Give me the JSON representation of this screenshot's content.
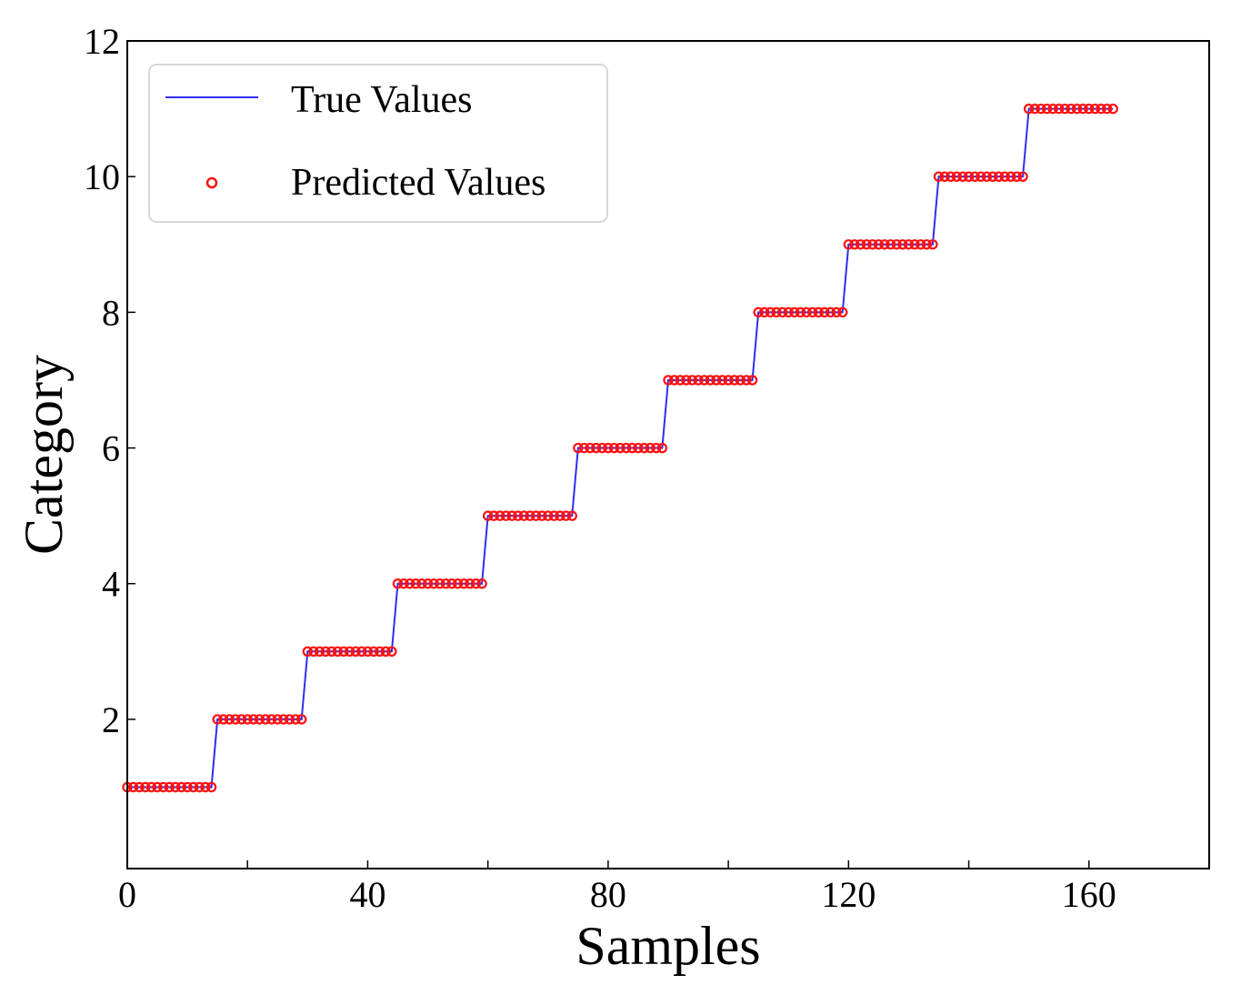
{
  "chart_data": {
    "type": "line",
    "title": "",
    "xlabel": "Samples",
    "ylabel": "Category",
    "xlim": [
      0,
      180
    ],
    "ylim": [
      -0.2,
      12
    ],
    "xticks": [
      0,
      40,
      80,
      120,
      160
    ],
    "xminor_ticks": [
      20,
      60,
      100,
      140
    ],
    "yticks": [
      2,
      4,
      6,
      8,
      10,
      12
    ],
    "grid": false,
    "legend_position": "top-left",
    "categories": [
      1,
      2,
      3,
      4,
      5,
      6,
      7,
      8,
      9,
      10,
      11
    ],
    "samples_per_category": 15,
    "series": [
      {
        "name": "True Values",
        "style": "line",
        "color": "#2e2ef0"
      },
      {
        "name": "Predicted Values",
        "style": "open-circle",
        "color": "#ff1010"
      }
    ]
  }
}
